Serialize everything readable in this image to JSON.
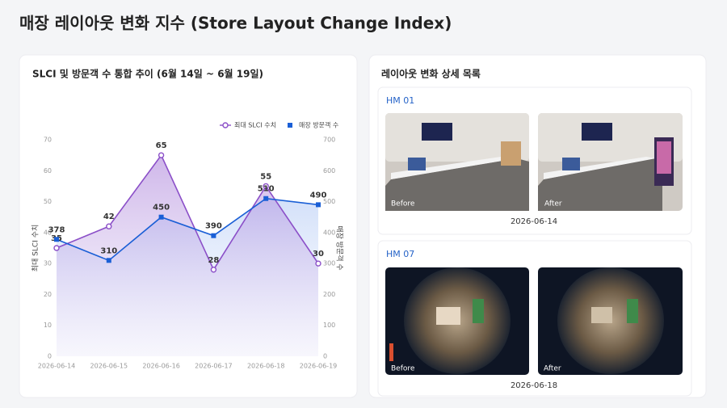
{
  "header": {
    "title": "매장 레이아웃 변화 지수 (Store Layout Change Index)"
  },
  "chart_data": {
    "type": "line",
    "title": "SLCI 및 방문객 수 통합 추이 (6월 14일 ~ 6월 19일)",
    "y_label": "최대 SLCI 수치",
    "y2_label": "매장 방문객 수",
    "categories": [
      "2026-06-14",
      "2026-06-15",
      "2026-06-16",
      "2026-06-17",
      "2026-06-18",
      "2026-06-19"
    ],
    "series": [
      {
        "name": "최대 SLCI 수치",
        "color": "#8b4fc8",
        "marker": "circle",
        "values": [
          35,
          42,
          65,
          28,
          55,
          30
        ]
      },
      {
        "name": "매장 방문객 수",
        "color": "#1a5fd6",
        "marker": "square",
        "axis": "y2",
        "values": [
          378,
          310,
          450,
          390,
          510,
          490
        ]
      }
    ],
    "ylim": [
      0,
      70
    ],
    "yticks": [
      0,
      10,
      20,
      30,
      40,
      50,
      60,
      70
    ],
    "y2lim": [
      0,
      700
    ],
    "y2ticks": [
      0,
      100,
      200,
      300,
      400,
      500,
      600,
      700
    ],
    "legend": "top-right",
    "area": true
  },
  "detail": {
    "title": "레이아웃 변화 상세 목록",
    "items": [
      {
        "id": "HM 01",
        "before_label": "Before",
        "after_label": "After",
        "date": "2026-06-14"
      },
      {
        "id": "HM 07",
        "before_label": "Before",
        "after_label": "After",
        "date": "2026-06-18"
      }
    ]
  }
}
